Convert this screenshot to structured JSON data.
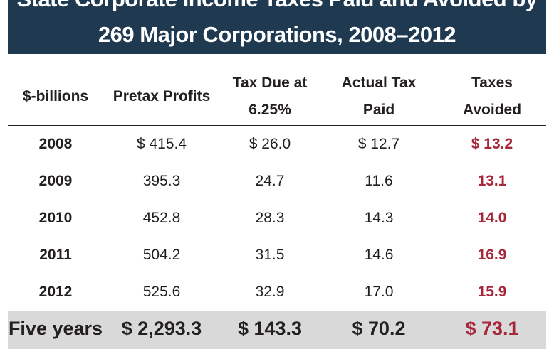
{
  "title": {
    "line1": "State Corporate Income Taxes Paid and Avoided by",
    "line2": "269 Major Corporations, 2008–2012"
  },
  "table": {
    "headers": [
      [
        "$-billions"
      ],
      [
        "Pretax Profits"
      ],
      [
        "Tax Due at",
        "6.25%"
      ],
      [
        "Actual Tax",
        "Paid"
      ],
      [
        "Taxes",
        "Avoided"
      ]
    ],
    "rows": [
      [
        "2008",
        "$ 415.4",
        "$ 26.0",
        "$ 12.7",
        "$ 13.2"
      ],
      [
        "2009",
        "395.3",
        "24.7",
        "11.6",
        "13.1"
      ],
      [
        "2010",
        "452.8",
        "28.3",
        "14.3",
        "14.0"
      ],
      [
        "2011",
        "504.2",
        "31.5",
        "14.6",
        "16.9"
      ],
      [
        "2012",
        "525.6",
        "32.9",
        "17.0",
        "15.9"
      ]
    ],
    "total": [
      "Five years",
      "$ 2,293.3",
      "$ 143.3",
      "$ 70.2",
      "$ 73.1"
    ]
  },
  "colors": {
    "title_background": "#1f3a50",
    "avoided_text": "#a6263a",
    "total_row_background": "#d9d9d9"
  }
}
